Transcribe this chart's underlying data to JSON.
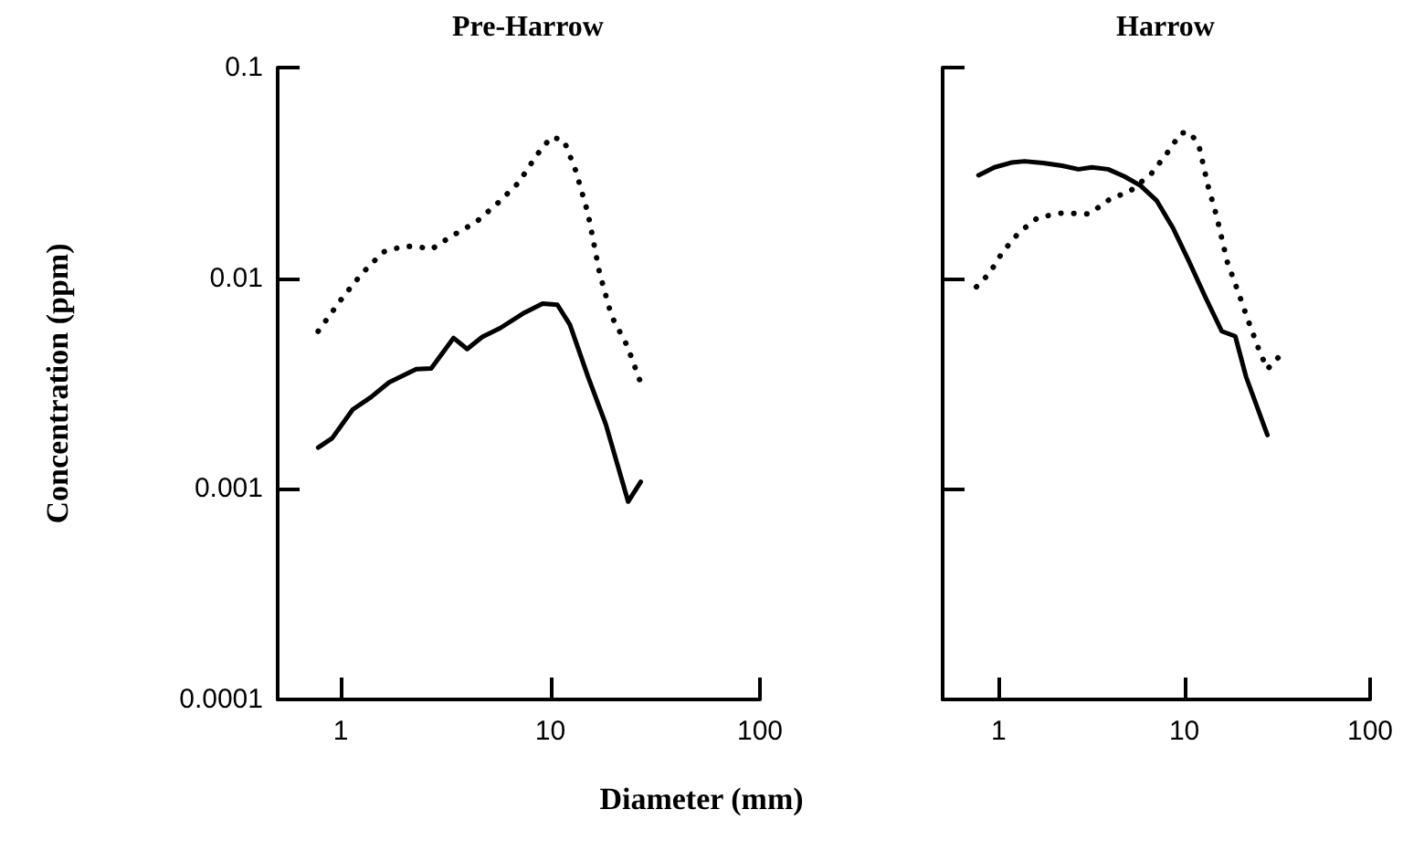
{
  "chart_data": [
    {
      "type": "line",
      "title": "Pre-Harrow",
      "ylabel": "Concentration (ppm)",
      "xlabel": "Diameter (mm)",
      "log": "xy",
      "grid": false,
      "marker": "none",
      "xlim": [
        0.5,
        100
      ],
      "xticks": [
        1,
        10,
        100
      ],
      "ylim": [
        0.0001,
        0.1
      ],
      "yticks": [
        0.0001,
        0.001,
        0.01,
        0.1
      ],
      "series": [
        {
          "color": "#000000",
          "line_style": "solid",
          "x": [
            0.78,
            0.91,
            1.14,
            1.39,
            1.7,
            2.29,
            2.7,
            3.45,
            4.01,
            4.73,
            5.77,
            7.52,
            9.18,
            10.8,
            12.4,
            15.1,
            18.4,
            23.5,
            27
          ],
          "values": [
            0.00157,
            0.00174,
            0.00238,
            0.00272,
            0.0032,
            0.0037,
            0.00373,
            0.0052,
            0.00461,
            0.00526,
            0.0058,
            0.00686,
            0.00757,
            0.00748,
            0.00601,
            0.00342,
            0.00202,
            0.00087,
            0.00108
          ]
        },
        {
          "color": "#000000",
          "line_style": "dotted",
          "x": [
            0.78,
            1.03,
            1.26,
            1.59,
            2,
            2.36,
            2.7,
            3.4,
            4.43,
            5.58,
            7.05,
            8.59,
            10.1,
            11.6,
            13.2,
            15.1,
            17.2,
            19.6,
            23.2,
            27.6
          ],
          "values": [
            0.0056,
            0.0082,
            0.0105,
            0.0133,
            0.0142,
            0.0141,
            0.0137,
            0.0159,
            0.0185,
            0.0226,
            0.0284,
            0.0383,
            0.0468,
            0.0452,
            0.0325,
            0.0204,
            0.0105,
            0.0066,
            0.0048,
            0.003
          ]
        }
      ]
    },
    {
      "type": "line",
      "title": "Harrow",
      "tick_labels": "x",
      "log": "xy",
      "grid": false,
      "marker": "none",
      "xlim": [
        0.5,
        100
      ],
      "xticks": [
        1,
        10,
        100
      ],
      "ylim": [
        0.0001,
        0.1
      ],
      "yticks": [
        0.0001,
        0.001,
        0.01,
        0.1
      ],
      "series": [
        {
          "color": "#000000",
          "line_style": "solid",
          "x": [
            0.78,
            0.95,
            1.17,
            1.38,
            1.74,
            2.2,
            2.69,
            3.18,
            3.89,
            4.76,
            5.82,
            7.11,
            8.69,
            10.6,
            13,
            15.9,
            18.8,
            21.5,
            28
          ],
          "values": [
            0.0308,
            0.0336,
            0.0354,
            0.0359,
            0.0352,
            0.0342,
            0.0329,
            0.0336,
            0.0329,
            0.0304,
            0.0275,
            0.0233,
            0.0173,
            0.012,
            0.0081,
            0.0056,
            0.0053,
            0.0034,
            0.0018
          ]
        },
        {
          "color": "#000000",
          "line_style": "dotted",
          "x": [
            0.76,
            0.89,
            1.05,
            1.29,
            1.63,
            2.2,
            3.08,
            4.02,
            5.08,
            6.65,
            8.13,
            9.61,
            10.8,
            12,
            13.4,
            14.9,
            17,
            19.4,
            22.2,
            25.4,
            28,
            32
          ],
          "values": [
            0.0091,
            0.0105,
            0.0133,
            0.0165,
            0.0194,
            0.0204,
            0.0202,
            0.0239,
            0.0258,
            0.0314,
            0.0396,
            0.049,
            0.049,
            0.0423,
            0.0275,
            0.0198,
            0.012,
            0.0087,
            0.0062,
            0.0045,
            0.0037,
            0.0042
          ]
        }
      ]
    }
  ]
}
